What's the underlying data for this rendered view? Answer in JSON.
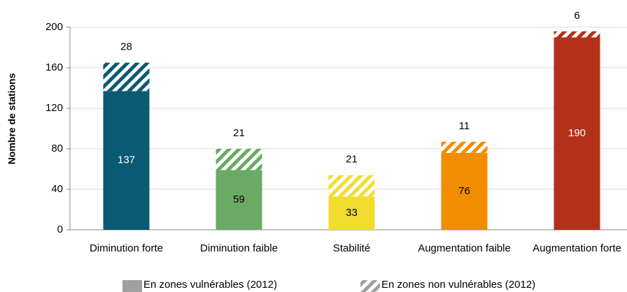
{
  "chart_data": {
    "type": "stacked_bar",
    "y_label": "Nombre de stations",
    "categories": [
      "Diminution forte",
      "Diminution faible",
      "Stabilité",
      "Augmentation faible",
      "Augmentation forte"
    ],
    "colors": [
      "#0b5a73",
      "#6aaa64",
      "#f2dc2f",
      "#f28c00",
      "#b5301a"
    ],
    "series": [
      {
        "name": "En zones vulnérables (2012)",
        "color": "#a0a0a0",
        "values": [
          137,
          59,
          33,
          76,
          190
        ]
      },
      {
        "name": "En zones non vulnérables (2012)",
        "color": "#a0a0a0",
        "pattern": "hatch",
        "values": [
          28,
          21,
          21,
          11,
          6
        ]
      }
    ],
    "ylim": [
      0,
      200
    ],
    "yticks": [
      0,
      40,
      80,
      120,
      160,
      200
    ],
    "grid": true,
    "legend": "bottom"
  }
}
